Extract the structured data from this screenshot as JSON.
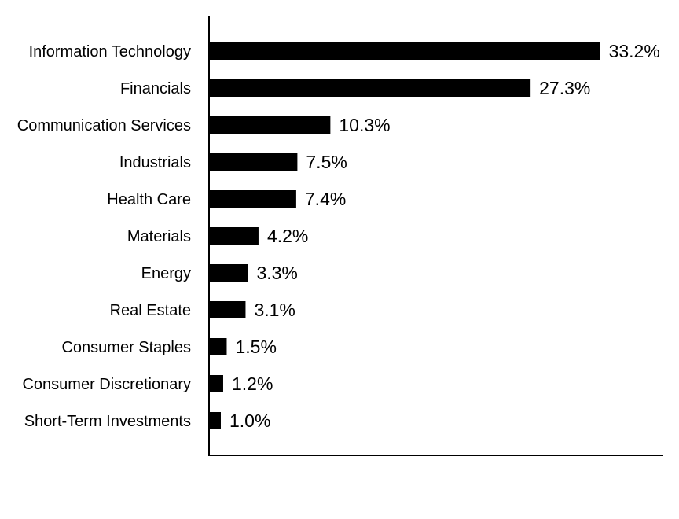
{
  "chart_data": {
    "type": "bar",
    "orientation": "horizontal",
    "categories": [
      "Information Technology",
      "Financials",
      "Communication Services",
      "Industrials",
      "Health Care",
      "Materials",
      "Energy",
      "Real Estate",
      "Consumer Staples",
      "Consumer Discretionary",
      "Short-Term Investments"
    ],
    "values": [
      33.2,
      27.3,
      10.3,
      7.5,
      7.4,
      4.2,
      3.3,
      3.1,
      1.5,
      1.2,
      1.0
    ],
    "value_labels": [
      "33.2%",
      "27.3%",
      "10.3%",
      "7.5%",
      "7.4%",
      "4.2%",
      "3.3%",
      "3.1%",
      "1.5%",
      "1.2%",
      "1.0%"
    ],
    "bar_color": "#000000",
    "xlim": [
      0,
      38.5
    ],
    "grid": false,
    "legend": "none"
  }
}
